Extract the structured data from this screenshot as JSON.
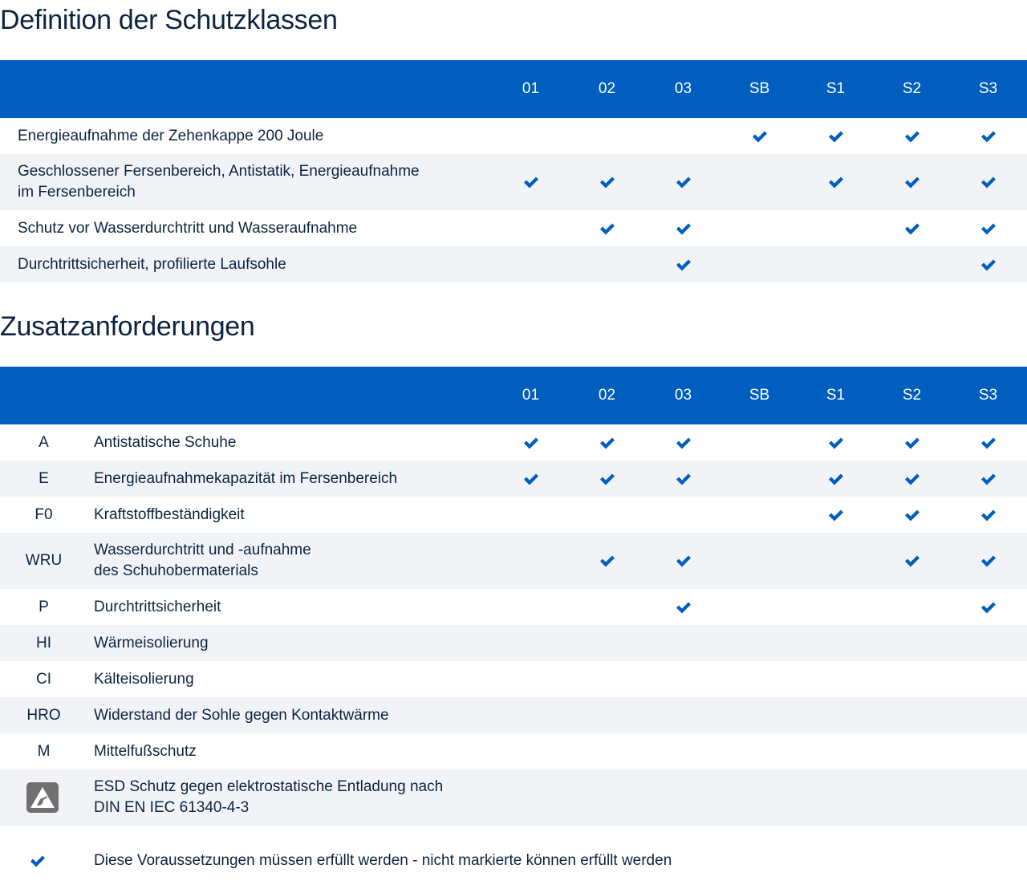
{
  "accent_color": "#005ebf",
  "section1": {
    "title": "Definition der Schutzklassen",
    "columns": [
      "01",
      "02",
      "03",
      "SB",
      "S1",
      "S2",
      "S3"
    ],
    "rows": [
      {
        "label": "Energieaufnahme der Zehenkappe 200 Joule",
        "checks": [
          false,
          false,
          false,
          true,
          true,
          true,
          true
        ]
      },
      {
        "label": "Geschlossener Fersenbereich, Antistatik, Energieaufnahme\nim Fersenbereich",
        "checks": [
          true,
          true,
          true,
          false,
          true,
          true,
          true
        ]
      },
      {
        "label": "Schutz vor Wasserdurchtritt und Wasseraufnahme",
        "checks": [
          false,
          true,
          true,
          false,
          false,
          true,
          true
        ]
      },
      {
        "label": "Durchtrittsicherheit, profilierte Laufsohle",
        "checks": [
          false,
          false,
          true,
          false,
          false,
          false,
          true
        ]
      }
    ]
  },
  "section2": {
    "title": "Zusatzanforderungen",
    "columns": [
      "01",
      "02",
      "03",
      "SB",
      "S1",
      "S2",
      "S3"
    ],
    "rows": [
      {
        "code": "A",
        "label": "Antistatische Schuhe",
        "checks": [
          true,
          true,
          true,
          false,
          true,
          true,
          true
        ]
      },
      {
        "code": "E",
        "label": "Energieaufnahmekapazität im Fersenbereich",
        "checks": [
          true,
          true,
          true,
          false,
          true,
          true,
          true
        ]
      },
      {
        "code": "F0",
        "label": "Kraftstoffbeständigkeit",
        "checks": [
          false,
          false,
          false,
          false,
          true,
          true,
          true
        ]
      },
      {
        "code": "WRU",
        "label": "Wasserdurchtritt und -aufnahme\ndes Schuhobermaterials",
        "checks": [
          false,
          true,
          true,
          false,
          false,
          true,
          true
        ]
      },
      {
        "code": "P",
        "label": "Durchtrittsicherheit",
        "checks": [
          false,
          false,
          true,
          false,
          false,
          false,
          true
        ]
      },
      {
        "code": "HI",
        "label": "Wärmeisolierung",
        "checks": [
          false,
          false,
          false,
          false,
          false,
          false,
          false
        ]
      },
      {
        "code": "CI",
        "label": "Kälteisolierung",
        "checks": [
          false,
          false,
          false,
          false,
          false,
          false,
          false
        ]
      },
      {
        "code": "HRO",
        "label": "Widerstand der Sohle gegen Kontaktwärme",
        "checks": [
          false,
          false,
          false,
          false,
          false,
          false,
          false
        ]
      },
      {
        "code": "M",
        "label": "Mittelfußschutz",
        "checks": [
          false,
          false,
          false,
          false,
          false,
          false,
          false
        ]
      },
      {
        "code": "",
        "icon": "esd-warning-icon",
        "label": "ESD Schutz gegen elektrostatische Entladung nach\nDIN EN IEC 61340-4-3",
        "checks": [
          false,
          false,
          false,
          false,
          false,
          false,
          false
        ]
      }
    ]
  },
  "legend": {
    "icon": "checkmark-icon",
    "text": "Diese Voraussetzungen müssen erfüllt werden - nicht markierte können erfüllt werden"
  }
}
